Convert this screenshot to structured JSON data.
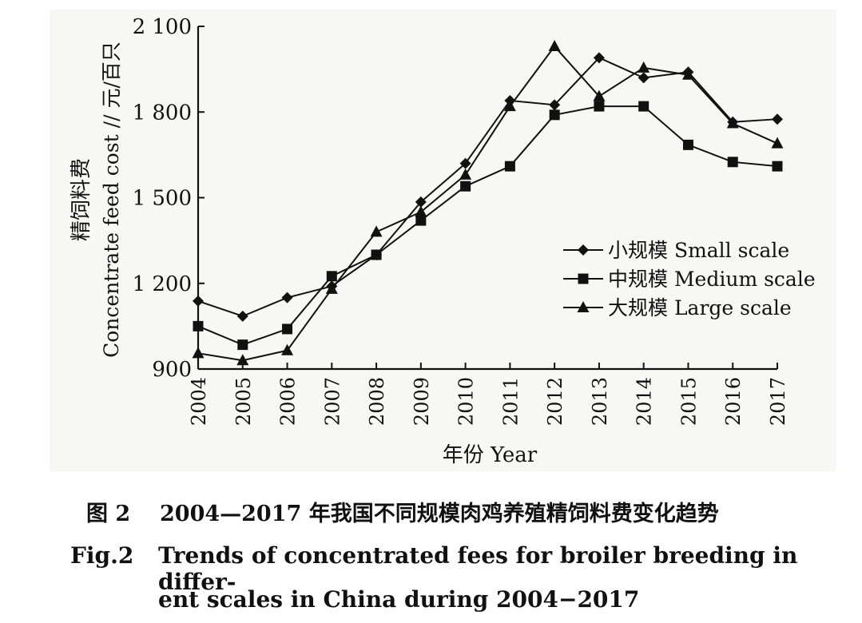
{
  "chart_data": {
    "type": "line",
    "title": "",
    "ylabel_cn": "精饲料费",
    "ylabel_en": "Concentrate feed cost // 元/百只",
    "xlabel": "年份 Year",
    "ylim": [
      900,
      2100
    ],
    "yticks": [
      "900",
      "1 200",
      "1 500",
      "1 800",
      "2 100"
    ],
    "ytick_values": [
      900,
      1200,
      1500,
      1800,
      2100
    ],
    "categories": [
      "2004",
      "2005",
      "2006",
      "2007",
      "2008",
      "2009",
      "2010",
      "2011",
      "2012",
      "2013",
      "2014",
      "2015",
      "2016",
      "2017"
    ],
    "legend_position": "right-middle",
    "series": [
      {
        "name": "小规模 Small scale",
        "marker": "diamond",
        "values": [
          1138,
          1085,
          1150,
          1190,
          1300,
          1485,
          1620,
          1840,
          1825,
          1990,
          1920,
          1940,
          1765,
          1775
        ]
      },
      {
        "name": "中规模 Medium scale",
        "marker": "square",
        "values": [
          1050,
          985,
          1040,
          1225,
          1300,
          1420,
          1540,
          1610,
          1790,
          1820,
          1820,
          1685,
          1625,
          1610
        ]
      },
      {
        "name": "大规模 Large scale",
        "marker": "triangle",
        "values": [
          955,
          930,
          965,
          1180,
          1380,
          1450,
          1580,
          1820,
          2030,
          1855,
          1955,
          1930,
          1760,
          1690
        ]
      }
    ],
    "colors": {
      "line": "#111111",
      "background": "#f7f7f6"
    }
  },
  "caption": {
    "cn_number": "图 2",
    "cn_text": "2004—2017 年我国不同规模肉鸡养殖精饲料费变化趋势",
    "en_number": "Fig.2",
    "en_line1": "Trends of concentrated fees for broiler breeding in differ-",
    "en_line2": "ent scales in China during 2004−2017"
  }
}
